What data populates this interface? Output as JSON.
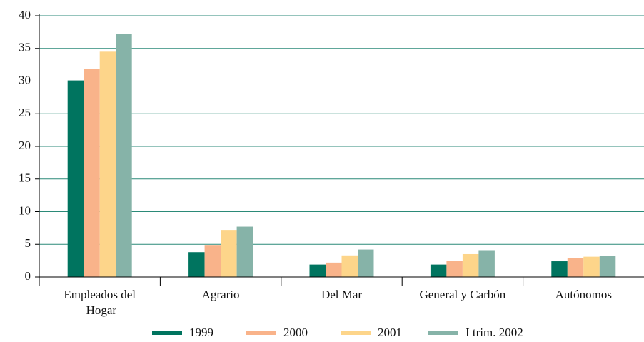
{
  "chart_data": {
    "type": "bar",
    "categories": [
      "Empleados del Hogar",
      "Agrario",
      "Del Mar",
      "General y Carbón",
      "Autónomos"
    ],
    "series": [
      {
        "name": "1999",
        "color": "#00745f",
        "values": [
          30.1,
          3.8,
          1.9,
          1.9,
          2.4
        ]
      },
      {
        "name": "2000",
        "color": "#f9b38a",
        "values": [
          31.9,
          4.9,
          2.2,
          2.5,
          2.9
        ]
      },
      {
        "name": "2001",
        "color": "#fdd58a",
        "values": [
          34.5,
          7.2,
          3.3,
          3.5,
          3.1
        ]
      },
      {
        "name": "I trim. 2002",
        "color": "#86b3a8",
        "values": [
          37.2,
          7.7,
          4.2,
          4.1,
          3.2
        ]
      }
    ],
    "ylim": [
      0,
      40
    ],
    "yticks": [
      0,
      5,
      10,
      15,
      20,
      25,
      30,
      35,
      40
    ],
    "grid": true,
    "legend": "bottom"
  }
}
